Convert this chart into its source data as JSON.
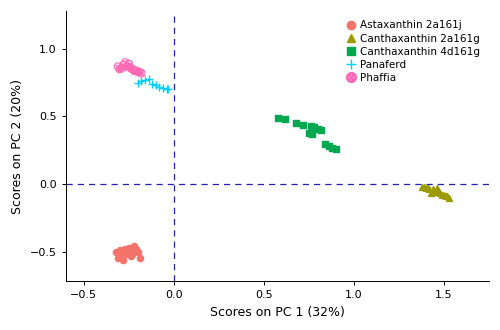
{
  "xlabel": "Scores on PC 1 (32%)",
  "ylabel": "Scores on PC 2 (20%)",
  "xlim": [
    -0.6,
    1.75
  ],
  "ylim": [
    -0.72,
    1.28
  ],
  "xticks": [
    -0.5,
    0.0,
    0.5,
    1.0,
    1.5
  ],
  "yticks": [
    -0.5,
    0.0,
    0.5,
    1.0
  ],
  "series": {
    "Astaxanthin 2a161j": {
      "color": "#F4736B",
      "marker": "o",
      "x": [
        -0.32,
        -0.3,
        -0.28,
        -0.29,
        -0.31,
        -0.27,
        -0.25,
        -0.26,
        -0.28,
        -0.3,
        -0.22,
        -0.2,
        -0.23,
        -0.21,
        -0.24,
        -0.19,
        -0.25
      ],
      "y": [
        -0.5,
        -0.49,
        -0.51,
        -0.53,
        -0.55,
        -0.48,
        -0.47,
        -0.52,
        -0.56,
        -0.54,
        -0.46,
        -0.5,
        -0.52,
        -0.48,
        -0.53,
        -0.55,
        -0.5
      ]
    },
    "Canthaxanthin 2a161g": {
      "color": "#9B9B00",
      "marker": "^",
      "x": [
        1.38,
        1.4,
        1.42,
        1.44,
        1.46,
        1.48,
        1.5,
        1.52,
        1.43,
        1.45,
        1.47,
        1.41,
        1.39,
        1.49,
        1.51,
        1.53,
        1.44,
        1.46
      ],
      "y": [
        -0.02,
        -0.03,
        -0.04,
        -0.05,
        -0.06,
        -0.07,
        -0.08,
        -0.09,
        -0.07,
        -0.06,
        -0.05,
        -0.03,
        -0.02,
        -0.08,
        -0.09,
        -0.1,
        -0.04,
        -0.03
      ]
    },
    "Canthaxanthin 4d161g": {
      "color": "#00A850",
      "marker": "s",
      "x": [
        0.58,
        0.62,
        0.68,
        0.72,
        0.76,
        0.78,
        0.8,
        0.82,
        0.84,
        0.86,
        0.88,
        0.9,
        0.75,
        0.77
      ],
      "y": [
        0.49,
        0.48,
        0.45,
        0.44,
        0.43,
        0.42,
        0.41,
        0.4,
        0.3,
        0.28,
        0.27,
        0.26,
        0.38,
        0.37
      ]
    },
    "Panaferd": {
      "color": "#00CFFF",
      "marker": "+",
      "x": [
        -0.2,
        -0.18,
        -0.16,
        -0.14,
        -0.12,
        -0.1,
        -0.08,
        -0.06,
        -0.04,
        -0.03
      ],
      "y": [
        0.75,
        0.76,
        0.77,
        0.78,
        0.74,
        0.73,
        0.72,
        0.71,
        0.7,
        0.7
      ]
    },
    "Phaffia": {
      "color": "#FF69B4",
      "marker": "x",
      "x": [
        -0.3,
        -0.28,
        -0.26,
        -0.24,
        -0.22,
        -0.2,
        -0.18,
        -0.25,
        -0.27,
        -0.29,
        -0.23,
        -0.21,
        -0.19,
        -0.31
      ],
      "y": [
        0.85,
        0.88,
        0.87,
        0.86,
        0.84,
        0.83,
        0.82,
        0.89,
        0.9,
        0.86,
        0.85,
        0.84,
        0.83,
        0.87
      ]
    }
  },
  "background_color": "#ffffff",
  "plot_bg_color": "#ffffff",
  "dashed_line_color": "#2222BB",
  "legend_fontsize": 7.5,
  "axis_fontsize": 9,
  "tick_fontsize": 8
}
